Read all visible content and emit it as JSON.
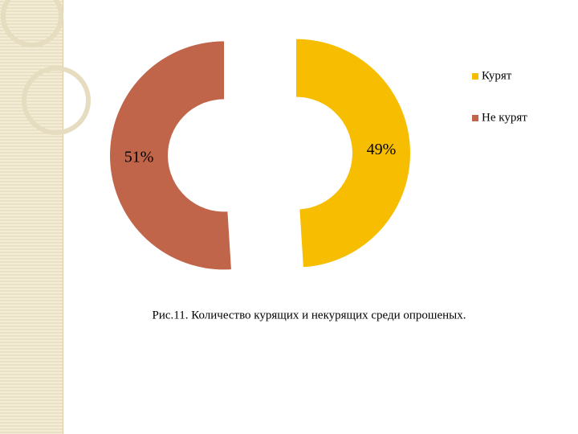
{
  "chart_data": {
    "type": "donut",
    "categories": [
      "Курят",
      "Не курят"
    ],
    "values": [
      49,
      51
    ],
    "value_labels": [
      "49%",
      "51%"
    ],
    "colors": [
      "#f7bd00",
      "#c0654a"
    ],
    "caption": "Рис.11. Количество курящих и некурящих среди опрошеных."
  }
}
